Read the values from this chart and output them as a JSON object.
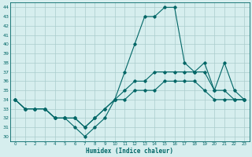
{
  "xlabel": "Humidex (Indice chaleur)",
  "background_color": "#d6eeee",
  "grid_color": "#aacccc",
  "line_color": "#006666",
  "xlim": [
    -0.5,
    23.5
  ],
  "ylim": [
    29.5,
    44.5
  ],
  "yticks": [
    30,
    31,
    32,
    33,
    34,
    35,
    36,
    37,
    38,
    39,
    40,
    41,
    42,
    43,
    44
  ],
  "xticks": [
    0,
    1,
    2,
    3,
    4,
    5,
    6,
    7,
    8,
    9,
    10,
    11,
    12,
    13,
    14,
    15,
    16,
    17,
    18,
    19,
    20,
    21,
    22,
    23
  ],
  "line1_y": [
    34,
    33,
    33,
    33,
    32,
    32,
    31,
    30,
    31,
    32,
    34,
    37,
    40,
    43,
    43,
    44,
    44,
    38,
    37,
    38,
    35,
    38,
    35,
    34
  ],
  "line2_y": [
    34,
    33,
    33,
    33,
    32,
    32,
    32,
    31,
    32,
    33,
    34,
    35,
    36,
    36,
    37,
    37,
    37,
    37,
    37,
    37,
    35,
    35,
    34,
    34
  ],
  "line3_y": [
    34,
    33,
    33,
    33,
    32,
    32,
    32,
    31,
    32,
    33,
    34,
    34,
    35,
    35,
    35,
    36,
    36,
    36,
    36,
    35,
    34,
    34,
    34,
    34
  ]
}
